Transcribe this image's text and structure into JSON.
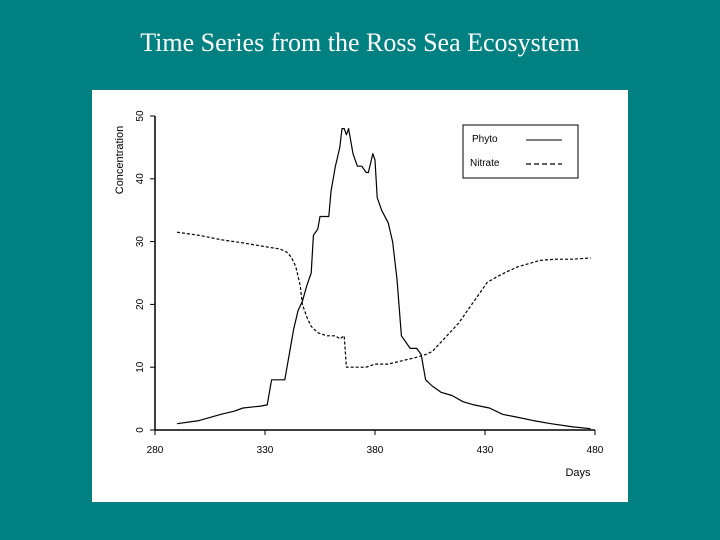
{
  "slide": {
    "title": "Time Series from the Ross Sea Ecosystem"
  },
  "chart_data": {
    "type": "line",
    "title": "",
    "xlabel": "Days",
    "ylabel": "Concentration",
    "xlim": [
      280,
      480
    ],
    "ylim": [
      0,
      50
    ],
    "x_ticks": [
      280,
      330,
      380,
      430,
      480
    ],
    "y_ticks": [
      0,
      10,
      20,
      30,
      40,
      50
    ],
    "grid": false,
    "legend_position": "top-right",
    "series": [
      {
        "name": "Phyto",
        "style": "solid",
        "color": "#000000",
        "points": [
          [
            290,
            1
          ],
          [
            300,
            1.5
          ],
          [
            305,
            2
          ],
          [
            310,
            2.5
          ],
          [
            316,
            3
          ],
          [
            320,
            3.5
          ],
          [
            328,
            3.8
          ],
          [
            331,
            4
          ],
          [
            333,
            8
          ],
          [
            339,
            8
          ],
          [
            341,
            12
          ],
          [
            343,
            16
          ],
          [
            345,
            19
          ],
          [
            347,
            20.5
          ],
          [
            349,
            23
          ],
          [
            351,
            25
          ],
          [
            352,
            31
          ],
          [
            354,
            32
          ],
          [
            355,
            34
          ],
          [
            359,
            34
          ],
          [
            360,
            38
          ],
          [
            362,
            42
          ],
          [
            364,
            45
          ],
          [
            365,
            48
          ],
          [
            366,
            48
          ],
          [
            367,
            47
          ],
          [
            368,
            48
          ],
          [
            370,
            44
          ],
          [
            372,
            42
          ],
          [
            374,
            42
          ],
          [
            376,
            41
          ],
          [
            377,
            41
          ],
          [
            379,
            44
          ],
          [
            380,
            43
          ],
          [
            381,
            37
          ],
          [
            383,
            35
          ],
          [
            386,
            33
          ],
          [
            388,
            30
          ],
          [
            390,
            24
          ],
          [
            392,
            15
          ],
          [
            396,
            13
          ],
          [
            399,
            13
          ],
          [
            401,
            12
          ],
          [
            403,
            8
          ],
          [
            406,
            7
          ],
          [
            410,
            6
          ],
          [
            415,
            5.5
          ],
          [
            420,
            4.5
          ],
          [
            425,
            4
          ],
          [
            432,
            3.5
          ],
          [
            438,
            2.5
          ],
          [
            445,
            2
          ],
          [
            452,
            1.5
          ],
          [
            460,
            1
          ],
          [
            470,
            0.5
          ],
          [
            478,
            0.2
          ]
        ]
      },
      {
        "name": "Nitrate",
        "style": "dashed",
        "color": "#000000",
        "points": [
          [
            290,
            31.5
          ],
          [
            300,
            31
          ],
          [
            310,
            30.3
          ],
          [
            320,
            29.8
          ],
          [
            330,
            29.2
          ],
          [
            337,
            28.8
          ],
          [
            340,
            28.3
          ],
          [
            342,
            27.5
          ],
          [
            344,
            26
          ],
          [
            346,
            23
          ],
          [
            347,
            20
          ],
          [
            349,
            18
          ],
          [
            351,
            16.5
          ],
          [
            354,
            15.5
          ],
          [
            358,
            15
          ],
          [
            362,
            15
          ],
          [
            364,
            14.5
          ],
          [
            366,
            15
          ],
          [
            367,
            10
          ],
          [
            370,
            10
          ],
          [
            376,
            10
          ],
          [
            380,
            10.5
          ],
          [
            386,
            10.5
          ],
          [
            392,
            11
          ],
          [
            398,
            11.5
          ],
          [
            403,
            12
          ],
          [
            406,
            12.5
          ],
          [
            410,
            14
          ],
          [
            414,
            15.5
          ],
          [
            418,
            17
          ],
          [
            423,
            19.5
          ],
          [
            427,
            21.5
          ],
          [
            431,
            23.5
          ],
          [
            436,
            24.5
          ],
          [
            440,
            25.2
          ],
          [
            445,
            26
          ],
          [
            450,
            26.5
          ],
          [
            455,
            27
          ],
          [
            462,
            27.2
          ],
          [
            470,
            27.2
          ],
          [
            478,
            27.4
          ]
        ]
      }
    ]
  }
}
